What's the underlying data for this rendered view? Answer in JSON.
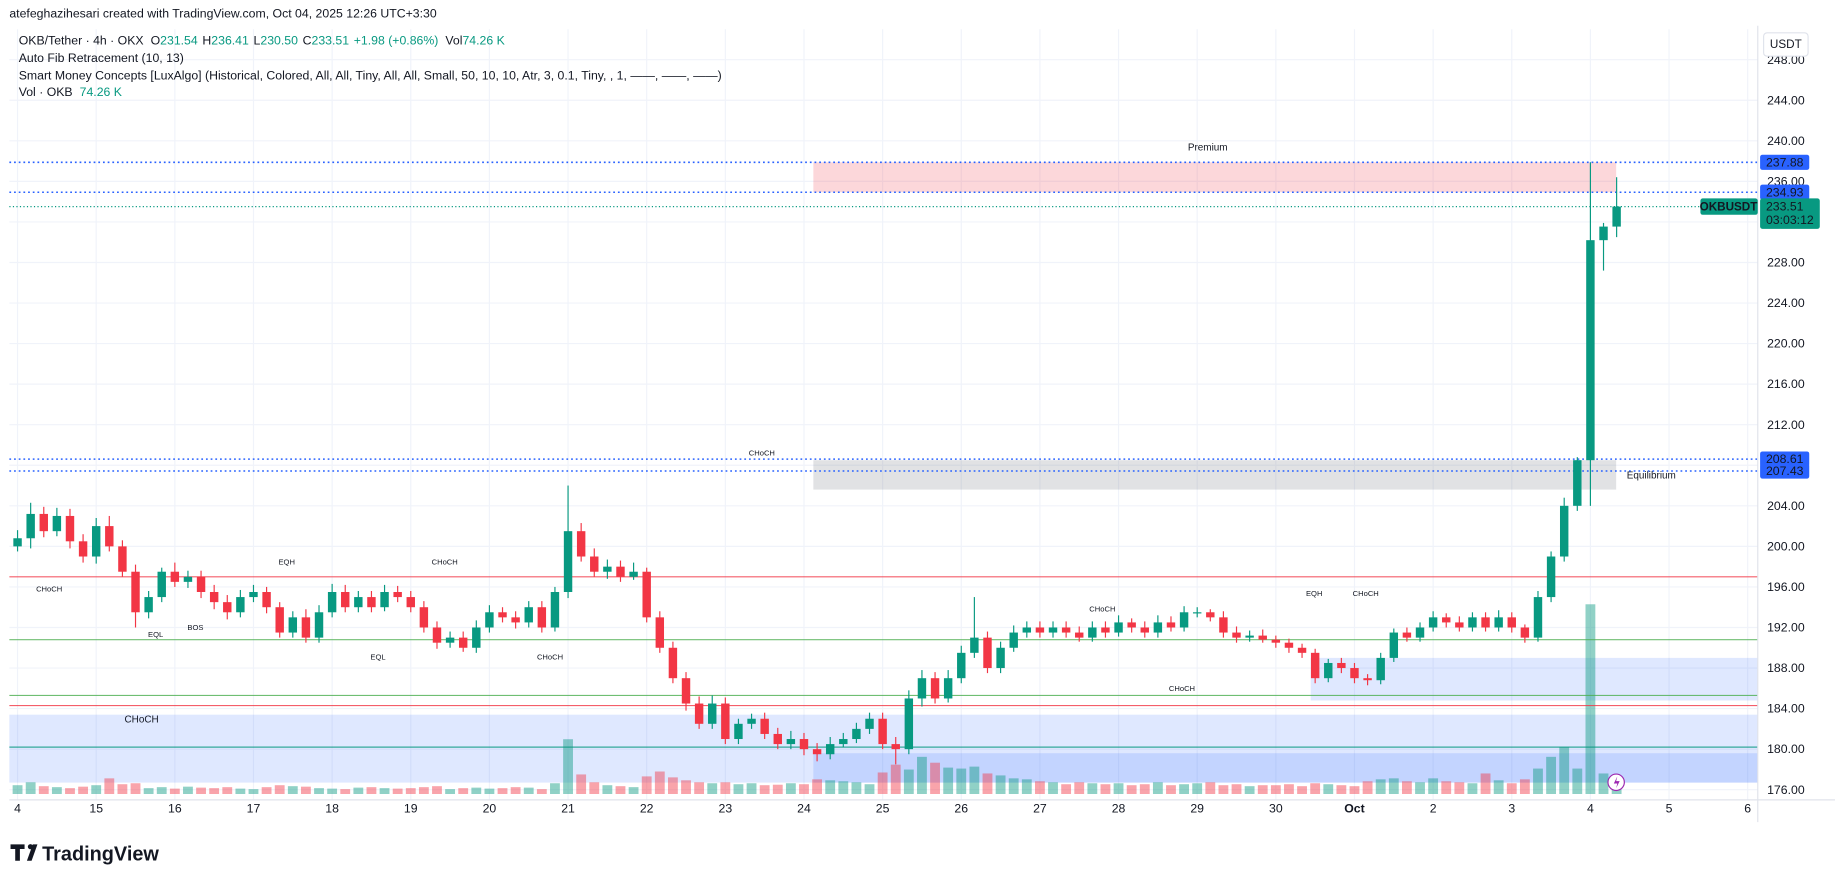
{
  "header": {
    "credit": "atefeghazihesari created with TradingView.com, Oct 04, 2025 12:26 UTC+3:30",
    "symbol": "OKB/Tether · 4h · OKX",
    "ohlc": [
      {
        "key": "O",
        "value": "231.54"
      },
      {
        "key": "H",
        "value": "236.41"
      },
      {
        "key": "L",
        "value": "230.50"
      },
      {
        "key": "C",
        "value": "233.51"
      }
    ],
    "change": "+1.98 (+0.86%)",
    "vol_key": "Vol",
    "vol_value": "74.26 K",
    "indicators": [
      "Auto Fib Retracement (10, 13)",
      "Smart Money Concepts [LuxAlgo] (Historical, Colored, All, All, Tiny, All, All, Small, 50, 10, 10, Atr, 3, 0.1, Tiny, , 1, ——, ——, ——)"
    ],
    "vol_indicator": "Vol · OKB",
    "vol_indicator_value": "74.26 K"
  },
  "currency": "USDT",
  "logo": "TradingView",
  "chart_data": {
    "type": "candlestick",
    "x_labels": [
      "4",
      "15",
      "16",
      "17",
      "18",
      "19",
      "20",
      "21",
      "22",
      "23",
      "24",
      "25",
      "26",
      "27",
      "28",
      "29",
      "30",
      "Oct",
      "2",
      "3",
      "4",
      "5",
      "6"
    ],
    "open": [
      200.0,
      200.8,
      203.2,
      201.5,
      203.0,
      200.5,
      199.0,
      202.0,
      200.0,
      197.5,
      193.5,
      195.0,
      197.5,
      196.5,
      197.0,
      195.5,
      194.5,
      193.5,
      195.0,
      195.5,
      194.0,
      191.5,
      193.0,
      191.0,
      193.5,
      195.5,
      194.0,
      195.0,
      194.0,
      195.5,
      195.0,
      194.0,
      192.0,
      190.5,
      191.0,
      190.0,
      192.0,
      193.5,
      193.0,
      192.5,
      194.0,
      192.0,
      195.5,
      201.5,
      199.0,
      197.5,
      198.0,
      197.0,
      197.5,
      193.0,
      190.0,
      187.0,
      184.5,
      182.5,
      184.5,
      181.0,
      182.5,
      183.0,
      181.5,
      180.5,
      181.0,
      180.0,
      179.5,
      180.5,
      181.0,
      182.0,
      183.0,
      180.5,
      180.0,
      185.0,
      187.0,
      185.0,
      187.0,
      189.5,
      191.0,
      188.0,
      190.0,
      191.5,
      192.0,
      191.5,
      192.0,
      191.5,
      191.0,
      192.0,
      191.5,
      192.5,
      192.0,
      191.5,
      192.5,
      192.0,
      193.5,
      193.5,
      193.0,
      191.5,
      191.0,
      191.2,
      190.8,
      190.5,
      190.0,
      189.5,
      187.0,
      188.5,
      188.0,
      187.0,
      186.8,
      189.0,
      191.5,
      191.0,
      192.0,
      193.0,
      192.5,
      192.0,
      193.0,
      192.0,
      193.0,
      192.0,
      191.0,
      195.0,
      199.0,
      204.0,
      208.5,
      230.2,
      231.54
    ],
    "high": [
      201.6,
      204.3,
      203.9,
      203.8,
      203.7,
      201.2,
      202.8,
      203.0,
      200.6,
      198.2,
      195.6,
      197.9,
      198.4,
      197.6,
      197.6,
      196.2,
      195.2,
      195.7,
      196.2,
      196.0,
      194.5,
      193.6,
      193.8,
      194.2,
      196.3,
      196.2,
      195.6,
      195.6,
      196.2,
      196.1,
      195.6,
      194.6,
      192.6,
      191.6,
      191.6,
      192.7,
      194.2,
      194.0,
      193.6,
      194.6,
      194.6,
      196.0,
      206.0,
      202.3,
      199.8,
      198.7,
      198.6,
      198.4,
      197.9,
      193.6,
      190.6,
      187.6,
      185.2,
      185.3,
      185.1,
      183.0,
      183.5,
      183.6,
      182.1,
      181.8,
      181.6,
      180.6,
      181.2,
      181.6,
      182.6,
      183.6,
      183.6,
      181.2,
      185.8,
      187.8,
      187.6,
      187.8,
      190.2,
      195.0,
      191.6,
      190.6,
      192.2,
      192.6,
      192.6,
      192.6,
      192.6,
      192.1,
      192.6,
      192.6,
      193.2,
      192.9,
      192.6,
      193.2,
      193.1,
      194.1,
      194.0,
      193.8,
      193.6,
      192.1,
      191.7,
      191.8,
      191.2,
      190.9,
      190.4,
      189.9,
      188.9,
      189.0,
      188.5,
      187.4,
      189.5,
      191.9,
      192.0,
      192.5,
      193.6,
      193.4,
      193.1,
      193.5,
      193.5,
      193.7,
      193.5,
      192.3,
      195.6,
      199.5,
      204.8,
      208.8,
      237.88,
      231.9,
      236.41
    ],
    "low": [
      199.5,
      199.8,
      200.9,
      201.0,
      199.8,
      198.4,
      198.3,
      199.5,
      197.0,
      192.0,
      192.9,
      194.5,
      196.0,
      195.9,
      194.9,
      193.8,
      192.8,
      193.0,
      194.5,
      193.4,
      191.0,
      191.0,
      190.5,
      190.5,
      193.0,
      193.5,
      193.5,
      193.5,
      193.6,
      194.5,
      193.5,
      191.5,
      189.9,
      190.0,
      189.6,
      189.5,
      191.5,
      192.5,
      191.9,
      192.0,
      191.5,
      191.6,
      194.9,
      198.5,
      197.0,
      196.8,
      196.5,
      196.7,
      192.5,
      189.5,
      186.5,
      183.8,
      182.0,
      182.0,
      180.5,
      180.5,
      182.0,
      181.0,
      180.0,
      180.0,
      179.4,
      178.8,
      179.0,
      180.2,
      180.6,
      181.5,
      180.0,
      178.5,
      179.5,
      184.2,
      184.5,
      184.6,
      186.5,
      189.0,
      187.5,
      187.5,
      189.6,
      191.0,
      191.0,
      191.0,
      191.0,
      190.6,
      190.6,
      191.0,
      191.1,
      191.5,
      191.0,
      191.0,
      191.6,
      191.6,
      193.0,
      192.6,
      191.0,
      190.5,
      190.6,
      190.5,
      190.0,
      189.5,
      189.0,
      186.5,
      186.6,
      187.5,
      186.5,
      186.3,
      186.4,
      188.6,
      190.6,
      190.6,
      191.6,
      192.0,
      191.6,
      191.6,
      191.6,
      191.6,
      191.5,
      190.5,
      190.6,
      194.5,
      198.5,
      203.5,
      204.0,
      227.2,
      230.5
    ],
    "close": [
      200.8,
      203.2,
      201.5,
      203.0,
      200.5,
      199.0,
      202.0,
      200.0,
      197.5,
      193.5,
      195.0,
      197.5,
      196.5,
      197.0,
      195.5,
      194.5,
      193.5,
      195.0,
      195.5,
      194.0,
      191.5,
      193.0,
      191.0,
      193.5,
      195.5,
      194.0,
      195.0,
      194.0,
      195.5,
      195.0,
      194.0,
      192.0,
      190.5,
      191.0,
      190.0,
      192.0,
      193.5,
      193.0,
      192.5,
      194.0,
      192.0,
      195.5,
      201.5,
      199.0,
      197.5,
      198.0,
      197.0,
      197.5,
      193.0,
      190.0,
      187.0,
      184.5,
      182.5,
      184.5,
      181.0,
      182.5,
      183.0,
      181.5,
      180.5,
      181.0,
      180.0,
      179.5,
      180.5,
      181.0,
      182.0,
      183.0,
      180.5,
      180.0,
      185.0,
      187.0,
      185.0,
      187.0,
      189.5,
      191.0,
      188.0,
      190.0,
      191.5,
      192.0,
      191.5,
      192.0,
      191.5,
      191.0,
      192.0,
      191.5,
      192.5,
      192.0,
      191.5,
      192.5,
      192.0,
      193.5,
      193.5,
      193.0,
      191.5,
      191.0,
      191.2,
      190.8,
      190.5,
      190.0,
      189.5,
      187.0,
      188.5,
      188.0,
      187.0,
      186.8,
      189.0,
      191.5,
      191.0,
      192.0,
      193.0,
      192.5,
      192.0,
      193.0,
      192.0,
      193.0,
      192.0,
      191.0,
      195.0,
      199.0,
      204.0,
      208.5,
      230.2,
      231.54,
      233.51
    ],
    "volume": [
      90,
      120,
      80,
      70,
      60,
      75,
      90,
      160,
      100,
      110,
      60,
      70,
      55,
      75,
      65,
      60,
      70,
      55,
      50,
      70,
      90,
      80,
      75,
      60,
      55,
      50,
      65,
      70,
      60,
      55,
      60,
      70,
      80,
      50,
      60,
      65,
      55,
      60,
      70,
      65,
      50,
      110,
      560,
      200,
      120,
      90,
      80,
      70,
      180,
      230,
      170,
      140,
      120,
      110,
      120,
      100,
      110,
      90,
      95,
      110,
      100,
      150,
      140,
      130,
      120,
      100,
      220,
      300,
      250,
      380,
      320,
      270,
      260,
      280,
      210,
      190,
      160,
      150,
      130,
      120,
      100,
      120,
      110,
      100,
      110,
      90,
      100,
      120,
      90,
      100,
      110,
      120,
      90,
      100,
      80,
      90,
      90,
      100,
      80,
      110,
      100,
      90,
      80,
      130,
      150,
      160,
      130,
      120,
      160,
      130,
      120,
      110,
      210,
      140,
      110,
      150,
      260,
      380,
      480,
      260,
      1940,
      210,
      74.26
    ],
    "ylim": [
      175,
      251
    ],
    "yticks": [
      {
        "value": 176,
        "label": "176.00"
      },
      {
        "value": 180,
        "label": "180.00"
      },
      {
        "value": 184,
        "label": "184.00"
      },
      {
        "value": 188,
        "label": "188.00"
      },
      {
        "value": 192,
        "label": "192.00"
      },
      {
        "value": 196,
        "label": "196.00"
      },
      {
        "value": 200,
        "label": "200.00"
      },
      {
        "value": 204,
        "label": "204.00"
      },
      {
        "value": 208,
        "label": "208.00"
      },
      {
        "value": 212,
        "label": "212.00"
      },
      {
        "value": 216,
        "label": "216.00"
      },
      {
        "value": 220,
        "label": "220.00"
      },
      {
        "value": 224,
        "label": "224.00"
      },
      {
        "value": 228,
        "label": "228.00"
      },
      {
        "value": 232,
        "label": "232.00"
      },
      {
        "value": 236,
        "label": "236.00"
      },
      {
        "value": 240,
        "label": "240.00"
      },
      {
        "value": 244,
        "label": "244.00"
      },
      {
        "value": 248,
        "label": "248.00"
      }
    ],
    "grid": true,
    "up_color": "#089981",
    "down_color": "#f23645",
    "price_lines": [
      {
        "value": 237.88,
        "color": "#2962ff"
      },
      {
        "value": 234.93,
        "color": "#2962ff"
      },
      {
        "value": 208.61,
        "color": "#2962ff"
      },
      {
        "value": 207.43,
        "color": "#2962ff"
      }
    ],
    "symbol_tag": "OKBUSDT",
    "countdown": "03:03:12",
    "levels": [
      {
        "value": 197.0,
        "color": "#f23645"
      },
      {
        "value": 190.8,
        "color": "#4caf50"
      },
      {
        "value": 185.3,
        "color": "#4caf50"
      },
      {
        "value": 184.3,
        "color": "#f23645"
      },
      {
        "value": 180.2,
        "color": "#089981"
      }
    ],
    "zones": [
      {
        "label": "Premium",
        "from": 234.93,
        "to": 237.88,
        "color": "rgba(242,54,69,0.2)",
        "text_color": "#f23645"
      },
      {
        "label": "Equilibrium",
        "from": 205.6,
        "to": 208.5,
        "color": "rgba(120,123,134,0.22)",
        "text_color": "#a3a6af"
      },
      {
        "from": 176.7,
        "to": 183.4,
        "color": "rgba(41,98,255,0.15)"
      },
      {
        "from": 176.7,
        "to": 179.6,
        "color": "rgba(41,98,255,0.15)"
      },
      {
        "from": 184.8,
        "to": 189.0,
        "color": "rgba(41,98,255,0.15)"
      }
    ],
    "annotations": [
      {
        "text": "CHoCH",
        "color": "#089981"
      },
      {
        "text": "EQH",
        "color": "#f23645"
      },
      {
        "text": "CHoCH",
        "color": "#089981"
      },
      {
        "text": "CHoCH",
        "color": "#f23645"
      },
      {
        "text": "EQL",
        "color": "#089981"
      },
      {
        "text": "BOS",
        "color": "#f23645"
      },
      {
        "text": "EQL",
        "color": "#555"
      },
      {
        "text": "CHoCH",
        "color": "#f23645"
      },
      {
        "text": "CHoCH",
        "color": "#f23645"
      },
      {
        "text": "CHoCH",
        "color": "#089981"
      },
      {
        "text": "EQH",
        "color": "#f23645"
      },
      {
        "text": "CHoCH",
        "color": "#089981"
      },
      {
        "text": "CHoCH",
        "color": "#f23645"
      }
    ]
  }
}
